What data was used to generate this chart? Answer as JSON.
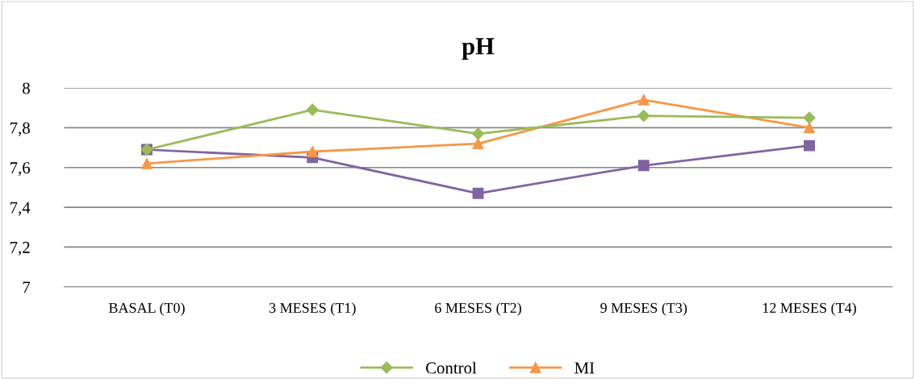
{
  "chart_data": {
    "type": "line",
    "title": "pH",
    "categories": [
      "BASAL (T0)",
      "3 MESES (T1)",
      "6 MESES (T2)",
      "9 MESES (T3)",
      "12 MESES (T4)"
    ],
    "series": [
      {
        "name": "Control",
        "color": "#9bbb59",
        "marker": "diamond",
        "values": [
          7.69,
          7.89,
          7.77,
          7.86,
          7.85
        ]
      },
      {
        "color": "#8064a2",
        "marker": "square",
        "values": [
          7.69,
          7.65,
          7.47,
          7.61,
          7.71
        ]
      },
      {
        "name": "MI",
        "color": "#f79646",
        "marker": "triangle",
        "values": [
          7.62,
          7.68,
          7.72,
          7.94,
          7.8
        ]
      }
    ],
    "ylim": [
      7,
      8
    ],
    "yticks": [
      {
        "value": 7,
        "label": "7"
      },
      {
        "value": 7.2,
        "label": "7,2"
      },
      {
        "value": 7.4,
        "label": "7,4"
      },
      {
        "value": 7.6,
        "label": "7,6"
      },
      {
        "value": 7.8,
        "label": "7,8"
      },
      {
        "value": 8,
        "label": "8"
      }
    ],
    "grid": "y",
    "legend": "bottom"
  }
}
